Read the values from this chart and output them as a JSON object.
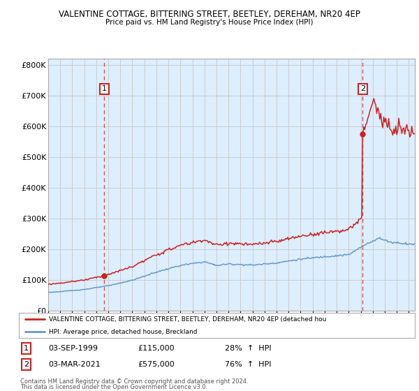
{
  "title_line1": "VALENTINE COTTAGE, BITTERING STREET, BEETLEY, DEREHAM, NR20 4EP",
  "title_line2": "Price paid vs. HM Land Registry's House Price Index (HPI)",
  "ylabel_ticks": [
    "£0",
    "£100K",
    "£200K",
    "£300K",
    "£400K",
    "£500K",
    "£600K",
    "£700K",
    "£800K"
  ],
  "ytick_values": [
    0,
    100000,
    200000,
    300000,
    400000,
    500000,
    600000,
    700000,
    800000
  ],
  "ylim": [
    0,
    820000
  ],
  "xlim_start": 1995.0,
  "xlim_end": 2025.5,
  "sale1_year": 1999.67,
  "sale1_price": 115000,
  "sale1_label": "1",
  "sale1_date": "03-SEP-1999",
  "sale1_hpi": "28%  ↑  HPI",
  "sale2_year": 2021.17,
  "sale2_price": 575000,
  "sale2_label": "2",
  "sale2_date": "03-MAR-2021",
  "sale2_hpi": "76%  ↑  HPI",
  "line_color_red": "#cc2222",
  "line_color_blue": "#6699cc",
  "vline_color": "#cc4444",
  "grid_color": "#cccccc",
  "plot_bg_color": "#ddeeff",
  "background_color": "#ffffff",
  "legend_line1": "VALENTINE COTTAGE, BITTERING STREET, BEETLEY, DEREHAM, NR20 4EP (detached hou",
  "legend_line2": "HPI: Average price, detached house, Breckland",
  "footer_line1": "Contains HM Land Registry data © Crown copyright and database right 2024.",
  "footer_line2": "This data is licensed under the Open Government Licence v3.0."
}
